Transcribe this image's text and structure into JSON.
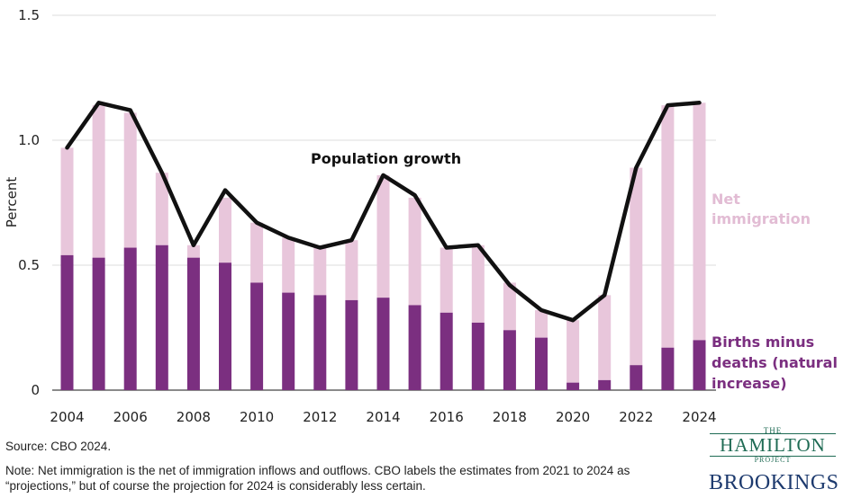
{
  "chart_data": {
    "type": "bar",
    "stacked": true,
    "title": "",
    "xlabel": "",
    "ylabel": "Percent",
    "ylim": [
      0,
      1.5
    ],
    "yticks": [
      "0",
      "0.5",
      "1.0",
      "1.5"
    ],
    "x_ticks": [
      "2004",
      "2006",
      "2008",
      "2010",
      "2012",
      "2014",
      "2016",
      "2018",
      "2020",
      "2022",
      "2024"
    ],
    "categories": [
      "2004",
      "2005",
      "2006",
      "2007",
      "2008",
      "2009",
      "2010",
      "2011",
      "2012",
      "2013",
      "2014",
      "2015",
      "2016",
      "2017",
      "2018",
      "2019",
      "2020",
      "2021",
      "2022",
      "2023",
      "2024"
    ],
    "series": [
      {
        "name": "Births minus deaths (natural increase)",
        "type": "bar",
        "values": [
          0.54,
          0.53,
          0.57,
          0.58,
          0.53,
          0.51,
          0.43,
          0.39,
          0.38,
          0.36,
          0.37,
          0.34,
          0.31,
          0.27,
          0.24,
          0.21,
          0.03,
          0.04,
          0.1,
          0.17,
          0.2
        ]
      },
      {
        "name": "Net immigration",
        "type": "bar",
        "values": [
          0.43,
          0.61,
          0.54,
          0.29,
          0.05,
          0.26,
          0.24,
          0.22,
          0.19,
          0.24,
          0.49,
          0.43,
          0.26,
          0.31,
          0.19,
          0.11,
          0.25,
          0.34,
          0.79,
          0.97,
          0.95
        ]
      },
      {
        "name": "Population growth",
        "type": "line",
        "values": [
          0.97,
          1.15,
          1.12,
          0.87,
          0.58,
          0.8,
          0.67,
          0.61,
          0.57,
          0.6,
          0.86,
          0.78,
          0.57,
          0.58,
          0.42,
          0.32,
          0.28,
          0.38,
          0.89,
          1.14,
          1.15
        ]
      }
    ],
    "labels": {
      "line": "Population growth",
      "immigration": [
        "Net",
        "immigration"
      ],
      "natural": [
        "Births minus",
        "deaths (natural",
        "increase)"
      ]
    },
    "grid": true,
    "colors": {
      "natural": "#7b2f80",
      "immigration": "#e8c6db",
      "line": "#111111",
      "grid": "#dddddd"
    }
  },
  "footer": {
    "source": "Source: CBO 2024.",
    "note": "Note: Net immigration is the net of immigration inflows and outflows. CBO labels the estimates from 2021 to 2024 as “projections,” but of course the projection for 2024 is considerably less certain."
  },
  "logos": {
    "hamilton_the": "THE",
    "hamilton_name": "HAMILTON",
    "hamilton_project": "PROJECT",
    "brookings": "BROOKINGS"
  }
}
